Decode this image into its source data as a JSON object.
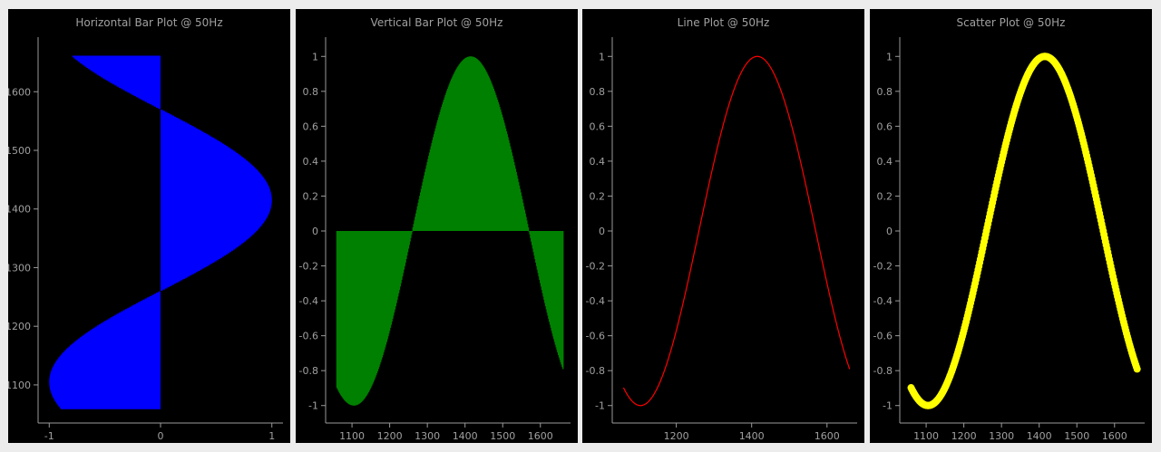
{
  "colors": {
    "background": "#ececec",
    "panel": "#000000",
    "axis": "#9a9a9a",
    "text": "#a0a0a0"
  },
  "chart_data": [
    {
      "type": "bar",
      "orientation": "horizontal",
      "title": "Horizontal Bar Plot @ 50Hz",
      "color": "#0000ff",
      "x": {
        "range": [
          1060,
          1660
        ],
        "sample_step": 2
      },
      "signal": {
        "amplitude": 1,
        "period": 620,
        "peak_at": 1415
      },
      "ylim": [
        1035,
        1690
      ],
      "xlim": [
        -1.1,
        1.1
      ],
      "yticks": [
        1100,
        1200,
        1300,
        1400,
        1500,
        1600
      ],
      "xticks": [
        -1,
        0,
        1
      ],
      "xtick_labels": [
        "-1",
        "0",
        "1"
      ],
      "ytick_labels": [
        "1100",
        "1200",
        "1300",
        "1400",
        "1500",
        "1600"
      ]
    },
    {
      "type": "bar",
      "orientation": "vertical",
      "title": "Vertical Bar Plot @ 50Hz",
      "color": "#008000",
      "x": {
        "range": [
          1060,
          1660
        ],
        "sample_step": 2
      },
      "signal": {
        "amplitude": 1,
        "period": 620,
        "peak_at": 1415
      },
      "xlim": [
        1030,
        1680
      ],
      "ylim": [
        -1.1,
        1.1
      ],
      "xticks": [
        1100,
        1200,
        1300,
        1400,
        1500,
        1600
      ],
      "yticks": [
        -1,
        -0.8,
        -0.6,
        -0.4,
        -0.2,
        0,
        0.2,
        0.4,
        0.6,
        0.8,
        1
      ],
      "xtick_labels": [
        "1100",
        "1200",
        "1300",
        "1400",
        "1500",
        "1600"
      ],
      "ytick_labels": [
        "-1",
        "-0.8",
        "-0.6",
        "-0.4",
        "-0.2",
        "0",
        "0.2",
        "0.4",
        "0.6",
        "0.8",
        "1"
      ]
    },
    {
      "type": "line",
      "title": "Line Plot @ 50Hz",
      "color": "#ff0000",
      "x": {
        "range": [
          1060,
          1660
        ],
        "sample_step": 2
      },
      "signal": {
        "amplitude": 1,
        "period": 620,
        "peak_at": 1415
      },
      "xlim": [
        1030,
        1680
      ],
      "ylim": [
        -1.1,
        1.1
      ],
      "xticks": [
        1200,
        1400,
        1600
      ],
      "yticks": [
        -1,
        -0.8,
        -0.6,
        -0.4,
        -0.2,
        0,
        0.2,
        0.4,
        0.6,
        0.8,
        1
      ],
      "xtick_labels": [
        "1200",
        "1400",
        "1600"
      ],
      "ytick_labels": [
        "-1",
        "-0.8",
        "-0.6",
        "-0.4",
        "-0.2",
        "0",
        "0.2",
        "0.4",
        "0.6",
        "0.8",
        "1"
      ]
    },
    {
      "type": "scatter",
      "title": "Scatter Plot @ 50Hz",
      "color": "#ffff00",
      "x": {
        "range": [
          1060,
          1660
        ],
        "sample_step": 2
      },
      "signal": {
        "amplitude": 1,
        "period": 620,
        "peak_at": 1415
      },
      "xlim": [
        1030,
        1680
      ],
      "ylim": [
        -1.1,
        1.1
      ],
      "xticks": [
        1100,
        1200,
        1300,
        1400,
        1500,
        1600
      ],
      "yticks": [
        -1,
        -0.8,
        -0.6,
        -0.4,
        -0.2,
        0,
        0.2,
        0.4,
        0.6,
        0.8,
        1
      ],
      "xtick_labels": [
        "1100",
        "1200",
        "1300",
        "1400",
        "1500",
        "1600"
      ],
      "ytick_labels": [
        "-1",
        "-0.8",
        "-0.6",
        "-0.4",
        "-0.2",
        "0",
        "0.2",
        "0.4",
        "0.6",
        "0.8",
        "1"
      ]
    }
  ]
}
